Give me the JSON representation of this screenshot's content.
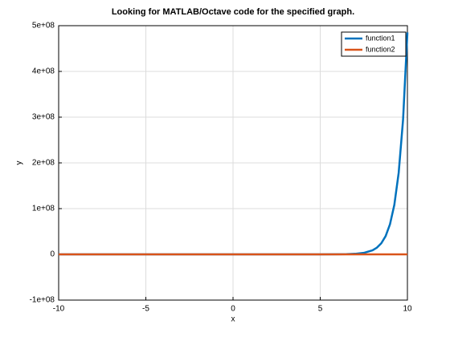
{
  "chart_data": {
    "type": "line",
    "title": "Looking for MATLAB/Octave code for the specified graph.",
    "xlabel": "x",
    "ylabel": "y",
    "x": [
      -10,
      -8,
      -6,
      -4,
      -2,
      0,
      2,
      4,
      5,
      6,
      6.5,
      7,
      7.5,
      8,
      8.25,
      8.5,
      8.75,
      9,
      9.25,
      9.5,
      9.75,
      10
    ],
    "series": [
      {
        "name": "function1",
        "color": "#0072bd",
        "values": [
          0,
          0,
          0,
          0,
          0,
          1,
          55,
          2981,
          22026,
          162755,
          442413,
          1202604,
          3269017,
          8886111,
          14650719,
          24154953,
          39824784,
          65659969,
          108254988,
          178482301,
          294267566,
          485165195
        ]
      },
      {
        "name": "function2",
        "color": "#d95319",
        "values": [
          0,
          0,
          0,
          0,
          0,
          1,
          7,
          55,
          148,
          403,
          665,
          1097,
          1808,
          2981,
          3827,
          4915,
          6311,
          8103,
          10405,
          13360,
          17154,
          22026
        ]
      }
    ],
    "xlim": [
      -10,
      10
    ],
    "xticks": [
      -10,
      -5,
      0,
      5,
      10
    ],
    "ylim": [
      -100000000,
      500000000
    ],
    "yticks": [
      {
        "value": -100000000,
        "label": "-1e+08"
      },
      0,
      {
        "value": 100000000,
        "label": "1e+08"
      },
      {
        "value": 200000000,
        "label": "2e+08"
      },
      {
        "value": 300000000,
        "label": "3e+08"
      },
      {
        "value": 400000000,
        "label": "4e+08"
      },
      {
        "value": 500000000,
        "label": "5e+08"
      }
    ],
    "grid": true,
    "legend": "top-right"
  }
}
